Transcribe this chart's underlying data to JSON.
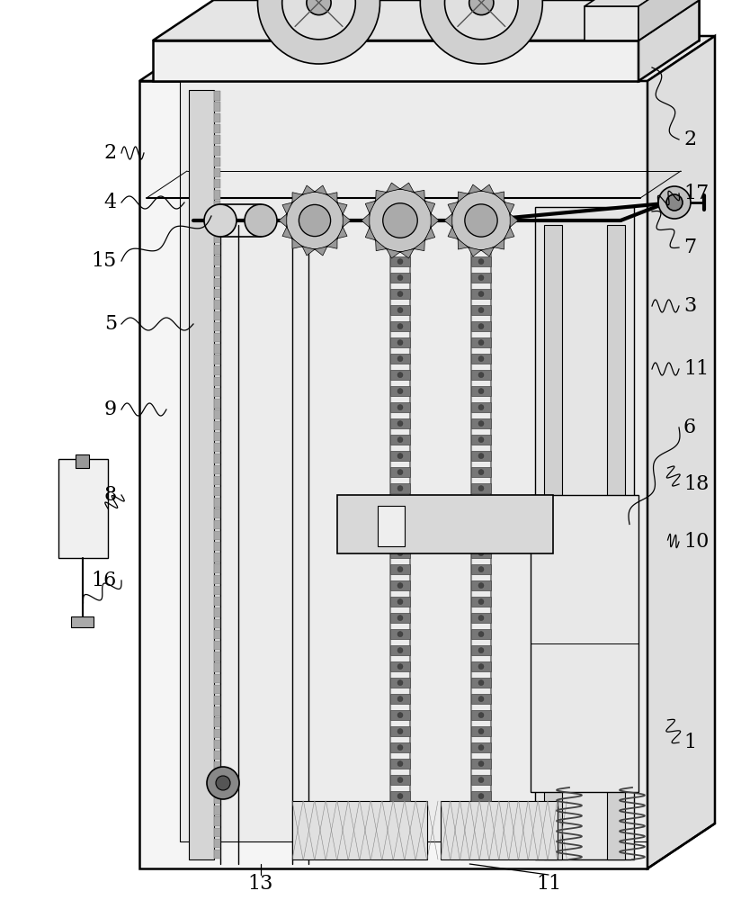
{
  "fig_width": 8.24,
  "fig_height": 10.0,
  "dpi": 100,
  "bg_color": "#ffffff",
  "lc": "#000000",
  "lw": 1.2,
  "thk": 1.8
}
